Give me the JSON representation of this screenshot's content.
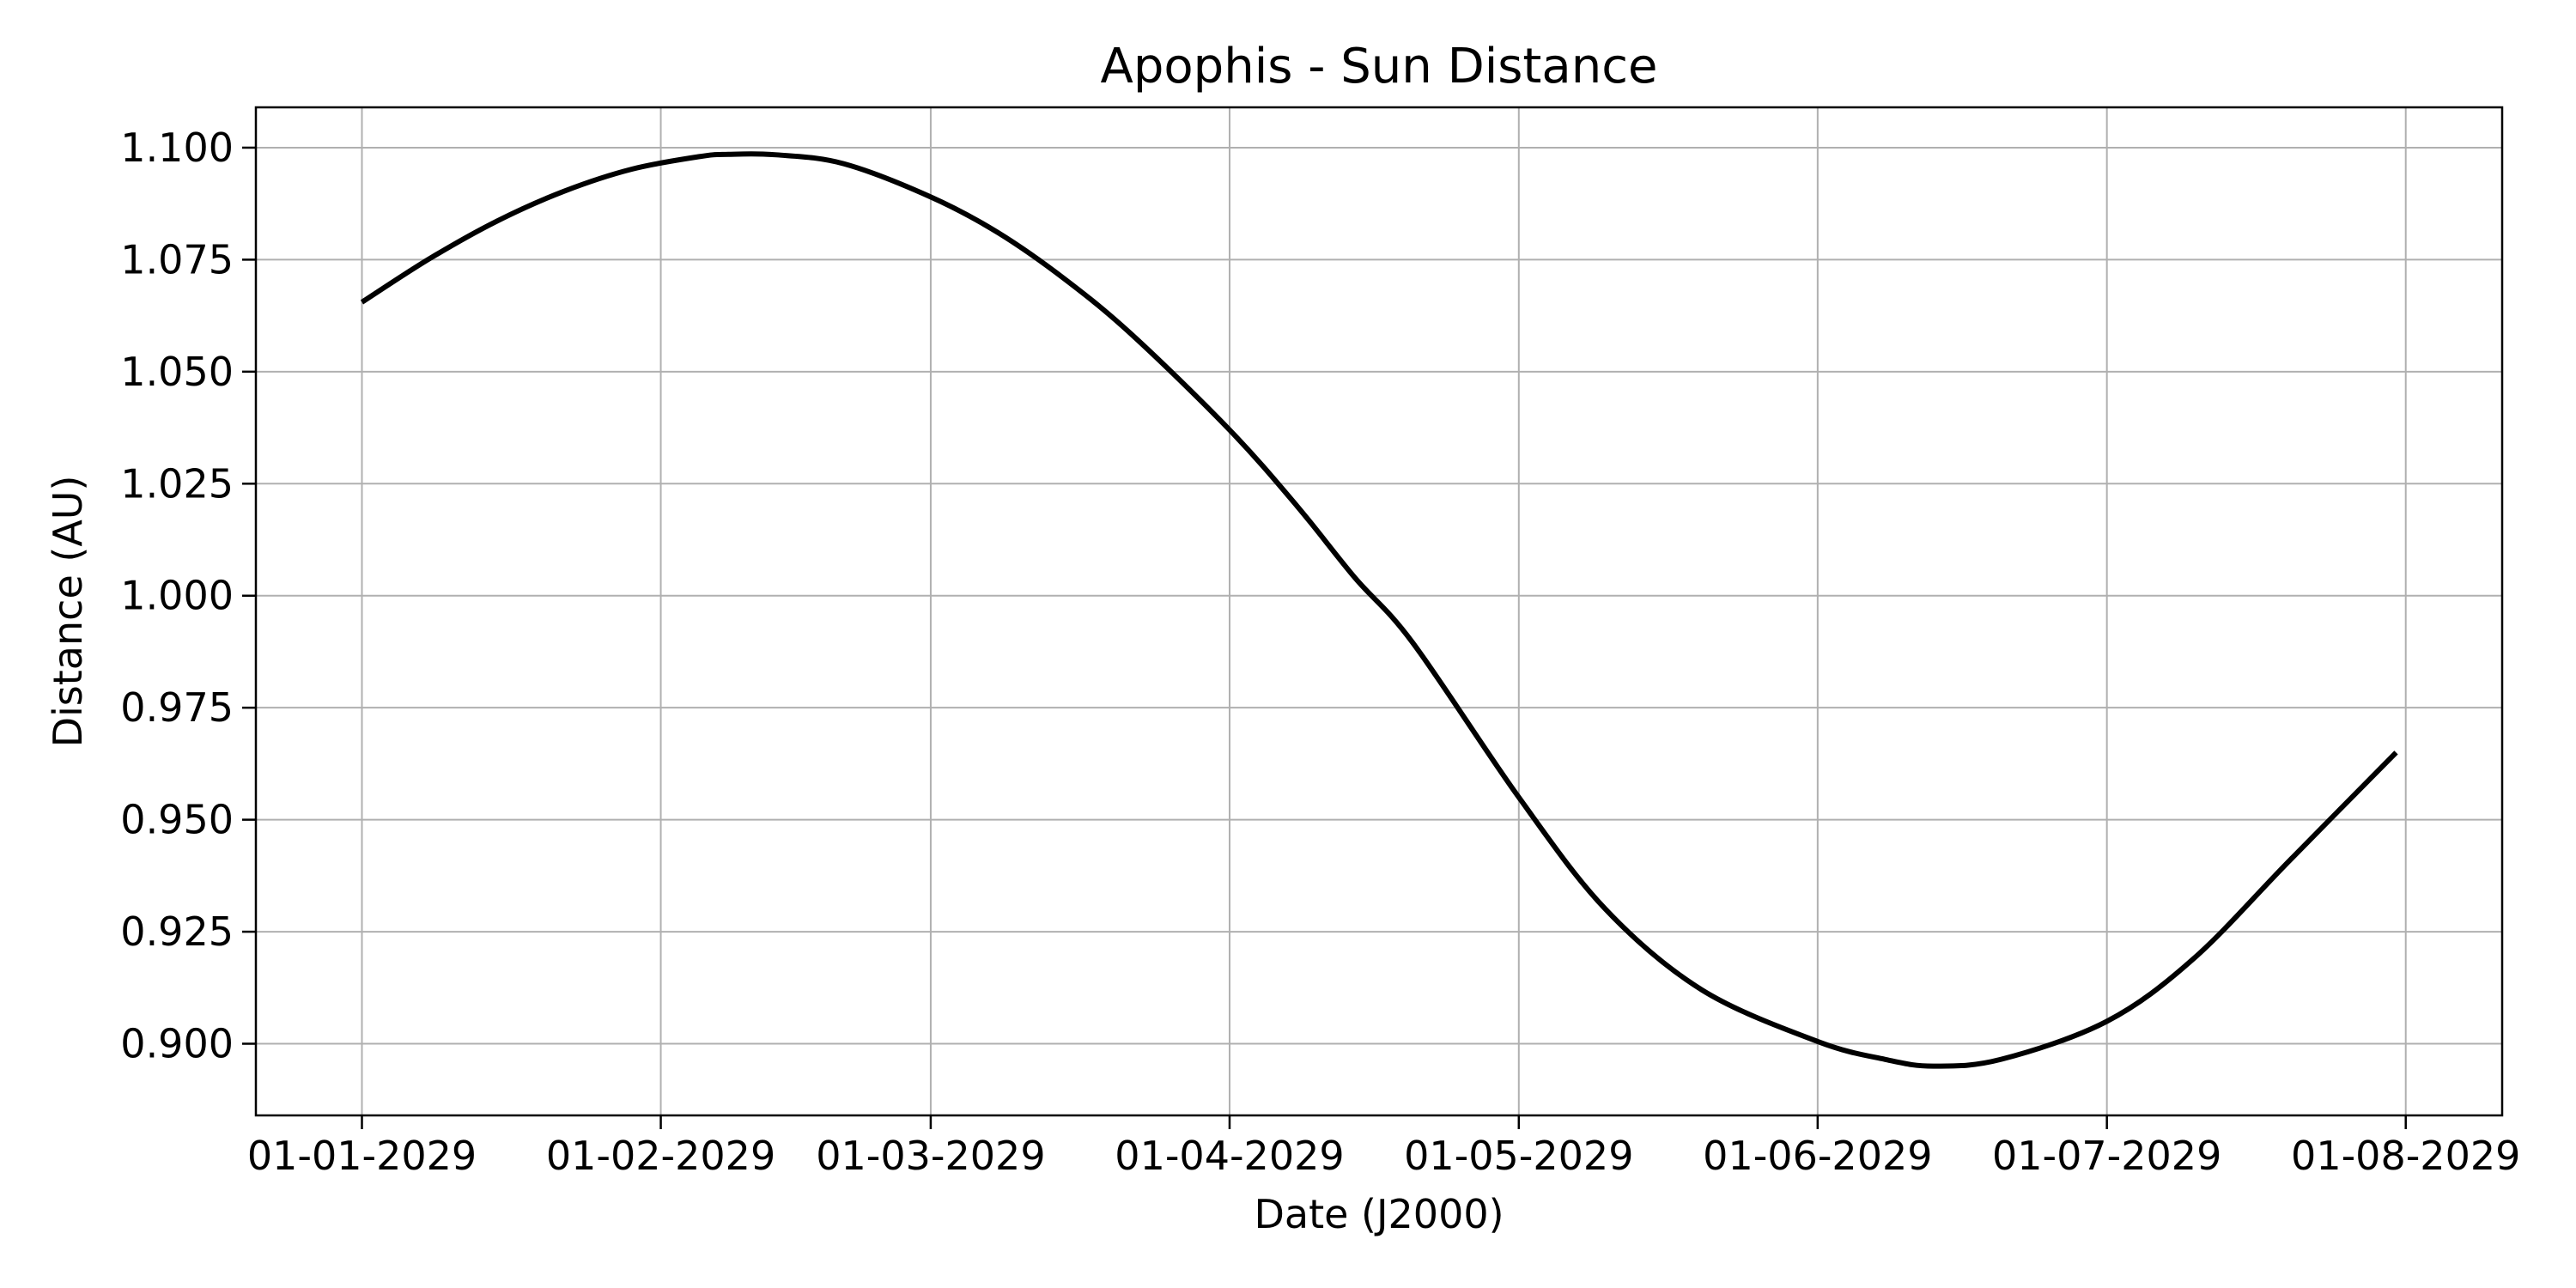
{
  "chart_data": {
    "type": "line",
    "title": "Apophis - Sun Distance",
    "xlabel": "Date (J2000)",
    "ylabel": "Distance (AU)",
    "grid": true,
    "legend": "none",
    "xlim": [
      "2028-12-21",
      "2029-08-11"
    ],
    "ylim": [
      0.884,
      1.109
    ],
    "x_ticks": [
      "2029-01-01",
      "2029-02-01",
      "2029-03-01",
      "2029-04-01",
      "2029-05-01",
      "2029-06-01",
      "2029-07-01",
      "2029-08-01"
    ],
    "x_tick_labels": [
      "01-01-2029",
      "01-02-2029",
      "01-03-2029",
      "01-04-2029",
      "01-05-2029",
      "01-06-2029",
      "01-07-2029",
      "01-08-2029"
    ],
    "y_ticks": [
      0.9,
      0.925,
      0.95,
      0.975,
      1.0,
      1.025,
      1.05,
      1.075,
      1.1
    ],
    "y_tick_labels": [
      "0.900",
      "0.925",
      "0.950",
      "0.975",
      "1.000",
      "1.025",
      "1.050",
      "1.075",
      "1.100"
    ],
    "series": [
      {
        "color": "#000000",
        "points": [
          [
            "2029-01-01",
            1.0655
          ],
          [
            "2029-01-08",
            1.0752
          ],
          [
            "2029-01-15",
            1.0836
          ],
          [
            "2029-01-22",
            1.0903
          ],
          [
            "2029-01-29",
            1.0952
          ],
          [
            "2029-02-05",
            1.098
          ],
          [
            "2029-02-08",
            1.0985
          ],
          [
            "2029-02-13",
            1.0984
          ],
          [
            "2029-02-20",
            1.0964
          ],
          [
            "2029-03-01",
            1.089
          ],
          [
            "2029-03-08",
            1.081
          ],
          [
            "2029-03-15",
            1.0705
          ],
          [
            "2029-03-22",
            1.058
          ],
          [
            "2029-04-01",
            1.037
          ],
          [
            "2029-04-08",
            1.02
          ],
          [
            "2029-04-14",
            1.004
          ],
          [
            "2029-04-20",
            0.9895
          ],
          [
            "2029-05-01",
            0.955
          ],
          [
            "2029-05-10",
            0.93
          ],
          [
            "2029-05-20",
            0.912
          ],
          [
            "2029-06-01",
            0.9005
          ],
          [
            "2029-06-08",
            0.8965
          ],
          [
            "2029-06-13",
            0.895
          ],
          [
            "2029-06-20",
            0.8965
          ],
          [
            "2029-07-01",
            0.905
          ],
          [
            "2029-07-10",
            0.919
          ],
          [
            "2029-07-20",
            0.941
          ],
          [
            "2029-07-31",
            0.965
          ]
        ]
      }
    ]
  }
}
